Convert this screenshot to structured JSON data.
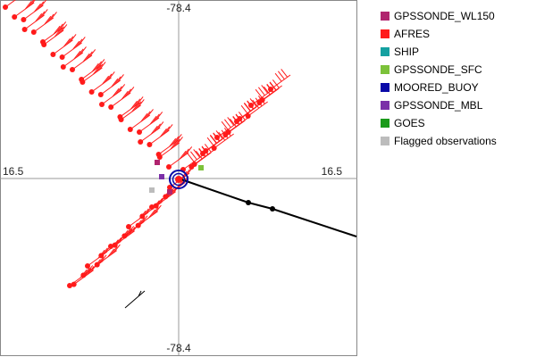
{
  "axis_labels": {
    "top": "-78.4",
    "bottom": "-78.4",
    "left": "16.5",
    "right": "16.5"
  },
  "legend": [
    {
      "label": "GPSSONDE_WL150",
      "color": "#b0246e"
    },
    {
      "label": "AFRES",
      "color": "#ff1a1a"
    },
    {
      "label": "SHIP",
      "color": "#14a0a0"
    },
    {
      "label": "GPSSONDE_SFC",
      "color": "#7cc23a"
    },
    {
      "label": "MOORED_BUOY",
      "color": "#0a0aa8"
    },
    {
      "label": "GPSSONDE_MBL",
      "color": "#7b2fa8"
    },
    {
      "label": "GOES",
      "color": "#1a9a1a"
    },
    {
      "label": "Flagged observations",
      "color": "#bcbcbc"
    }
  ],
  "colors": {
    "frame": "#888888",
    "axes": "#9a9a9a",
    "afres": "#ff1a1a",
    "track": "#000000",
    "center_ring": "#0a0aa8"
  }
}
